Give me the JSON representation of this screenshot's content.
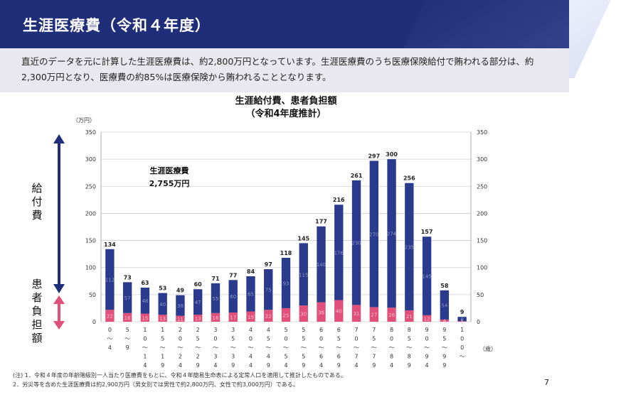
{
  "header": {
    "title": "生涯医療費（令和４年度）"
  },
  "intro": "直近のデータを元に計算した生涯医療費は、約2,800万円となっています。生涯医療費のうち医療保険給付で賄われる部分は、約2,300万円となり、医療費の約85%は医療保険から賄われることとなります。",
  "side_labels": {
    "benefit": "給付費",
    "patient": "患者負担額"
  },
  "chart_data": {
    "type": "bar",
    "stacked": true,
    "title": "生涯給付費、患者負担額",
    "subtitle": "（令和4年度推計）",
    "y_unit": "（万円）",
    "x_unit": "（歳）",
    "ylim": [
      0,
      350
    ],
    "yticks": [
      0,
      50,
      100,
      150,
      200,
      250,
      300,
      350
    ],
    "annotation": {
      "label": "生涯医療費",
      "value": "2,755万円"
    },
    "categories": [
      "0～4",
      "5～9",
      "10～14",
      "15～19",
      "20～24",
      "25～29",
      "30～34",
      "35～39",
      "40～44",
      "45～49",
      "50～54",
      "55～59",
      "60～64",
      "65～69",
      "70～74",
      "75～79",
      "80～84",
      "85～89",
      "90～94",
      "95～99",
      "100～"
    ],
    "category_ticks": [
      [
        "0",
        "～",
        "4"
      ],
      [
        "5",
        "～",
        "9"
      ],
      [
        "1",
        "0",
        "～",
        "1",
        "4"
      ],
      [
        "1",
        "5",
        "～",
        "1",
        "9"
      ],
      [
        "2",
        "0",
        "～",
        "2",
        "4"
      ],
      [
        "2",
        "5",
        "～",
        "2",
        "9"
      ],
      [
        "3",
        "0",
        "～",
        "3",
        "4"
      ],
      [
        "3",
        "5",
        "～",
        "3",
        "9"
      ],
      [
        "4",
        "0",
        "～",
        "4",
        "4"
      ],
      [
        "4",
        "5",
        "～",
        "4",
        "9"
      ],
      [
        "5",
        "0",
        "～",
        "5",
        "4"
      ],
      [
        "5",
        "5",
        "～",
        "5",
        "9"
      ],
      [
        "6",
        "0",
        "～",
        "6",
        "4"
      ],
      [
        "6",
        "5",
        "～",
        "6",
        "9"
      ],
      [
        "7",
        "0",
        "～",
        "7",
        "4"
      ],
      [
        "7",
        "5",
        "～",
        "7",
        "9"
      ],
      [
        "8",
        "0",
        "～",
        "8",
        "4"
      ],
      [
        "8",
        "5",
        "～",
        "8",
        "9"
      ],
      [
        "9",
        "0",
        "～",
        "9",
        "4"
      ],
      [
        "9",
        "5",
        "～",
        "9",
        "9"
      ],
      [
        "1",
        "0",
        "0",
        "～"
      ]
    ],
    "totals": [
      134,
      73,
      63,
      53,
      49,
      60,
      71,
      77,
      84,
      97,
      118,
      145,
      177,
      216,
      261,
      297,
      300,
      256,
      157,
      58,
      9
    ],
    "series": [
      {
        "name": "給付費",
        "color": "#2a3a8c",
        "values": [
          112,
          57,
          48,
          40,
          38,
          47,
          55,
          60,
          65,
          75,
          93,
          115,
          140,
          176,
          230,
          270,
          274,
          235,
          145,
          54,
          8
        ]
      },
      {
        "name": "患者負担額",
        "color": "#e0507a",
        "values": [
          22,
          16,
          15,
          13,
          11,
          13,
          16,
          17,
          19,
          22,
          25,
          30,
          36,
          40,
          31,
          27,
          26,
          21,
          12,
          4,
          1
        ]
      }
    ]
  },
  "notes": [
    "(注)  1．令和４年度の年齢階級別一人当たり医療費をもとに、令和４年簡易生命表による定常人口を適用して推計したものである。",
    "        2．労災等を含めた生涯医療費は約2,900万円（男女別では男性で約2,800万円、女性で約3,000万円）である。"
  ],
  "page_number": "7"
}
